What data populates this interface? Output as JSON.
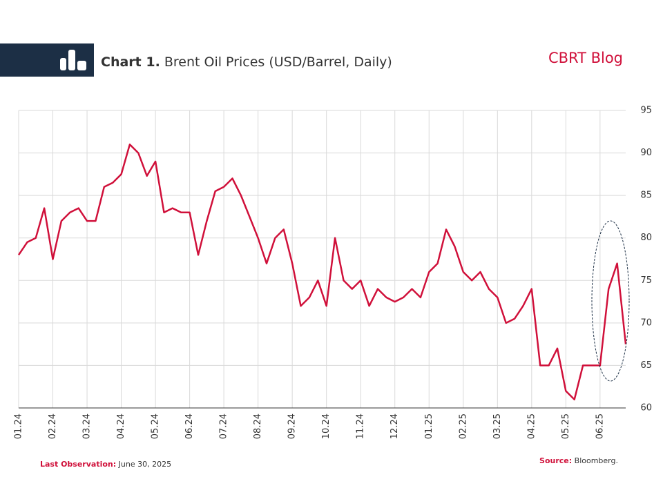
{
  "header": {
    "title_bold": "Chart 1.",
    "title": "Brent Oil Prices (USD/Barrel,  Daily)",
    "brand": "CBRT Blog"
  },
  "chart_data": {
    "type": "line",
    "categories": [
      "01.24",
      null,
      null,
      null,
      "02.24",
      null,
      null,
      null,
      "03.24",
      null,
      null,
      null,
      "04.24",
      null,
      null,
      null,
      "05.24",
      null,
      null,
      null,
      "06.24",
      null,
      null,
      null,
      "07.24",
      null,
      null,
      null,
      "08.24",
      null,
      null,
      null,
      "09.24",
      null,
      null,
      null,
      "10.24",
      null,
      null,
      null,
      "11.24",
      null,
      null,
      null,
      "12.24",
      null,
      null,
      null,
      "01.25",
      null,
      null,
      null,
      "02.25",
      null,
      null,
      null,
      "03.25",
      null,
      null,
      null,
      "04.25",
      null,
      null,
      null,
      "05.25",
      null,
      null,
      null,
      "06.25",
      null,
      null,
      null
    ],
    "series": [
      {
        "name": "Brent",
        "color": "#d0103a",
        "values": [
          78,
          79.5,
          80,
          83.5,
          77.5,
          82,
          83,
          83.5,
          82,
          82,
          86,
          86.5,
          87.5,
          91,
          90,
          87.3,
          89,
          83,
          83.5,
          83,
          83,
          78,
          82,
          85.5,
          86,
          87,
          85,
          82.5,
          80,
          77,
          80,
          81,
          77,
          72,
          73,
          75,
          72,
          80,
          75,
          74,
          75,
          72,
          74,
          73,
          72.5,
          73,
          74,
          73,
          76,
          77,
          81,
          79,
          76,
          75,
          76,
          74,
          73,
          70,
          70.5,
          72,
          74,
          65,
          65,
          67,
          62,
          61,
          65,
          65,
          65,
          74,
          77,
          67.5
        ]
      }
    ],
    "ylim": [
      60,
      95
    ],
    "yticks": [
      60,
      65,
      70,
      75,
      80,
      85,
      90,
      95
    ],
    "grid": true
  },
  "footer": {
    "obs_label": "Last Observation:",
    "obs_value": "June 30, 2025",
    "source_label": "Source:",
    "source_value": "Bloomberg."
  }
}
